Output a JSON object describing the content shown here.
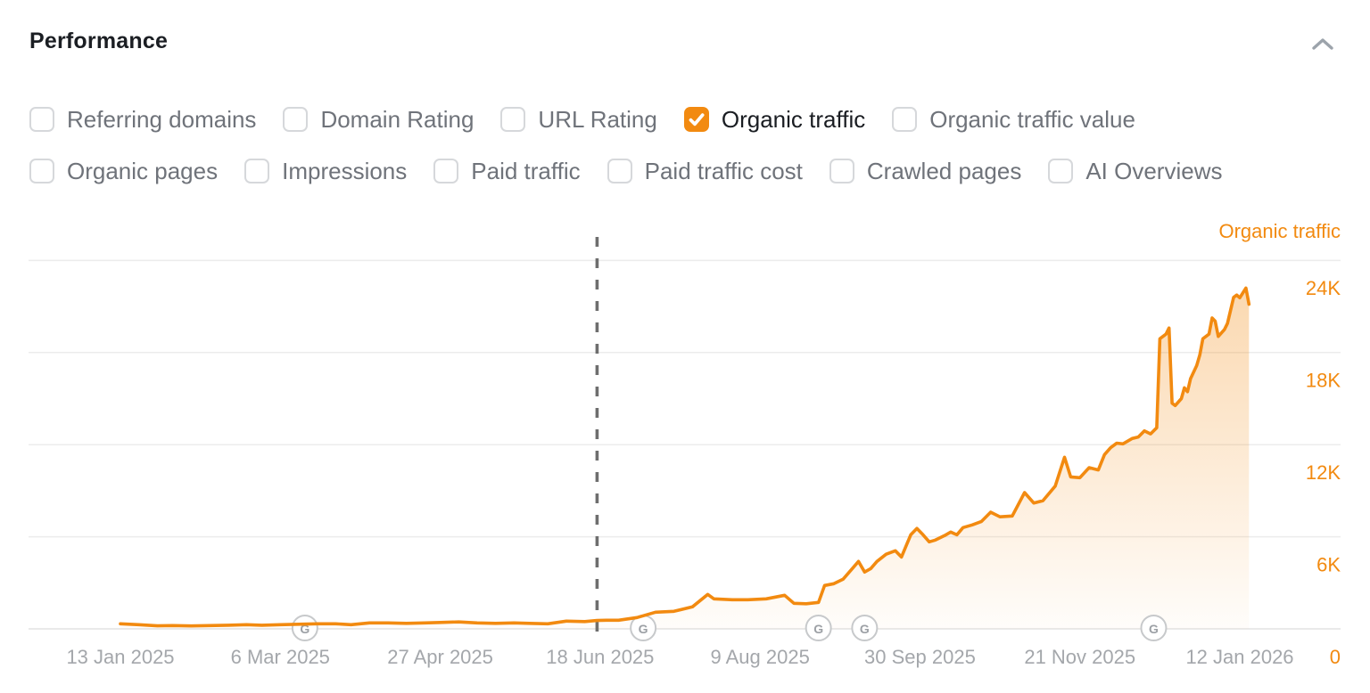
{
  "header": {
    "title": "Performance"
  },
  "filters": {
    "row1": [
      {
        "label": "Referring domains",
        "checked": false
      },
      {
        "label": "Domain Rating",
        "checked": false
      },
      {
        "label": "URL Rating",
        "checked": false
      },
      {
        "label": "Organic traffic",
        "checked": true
      },
      {
        "label": "Organic traffic value",
        "checked": false
      }
    ],
    "row2": [
      {
        "label": "Organic pages",
        "checked": false
      },
      {
        "label": "Impressions",
        "checked": false
      },
      {
        "label": "Paid traffic",
        "checked": false
      },
      {
        "label": "Paid traffic cost",
        "checked": false
      },
      {
        "label": "Crawled pages",
        "checked": false
      },
      {
        "label": "AI Overviews",
        "checked": false
      }
    ]
  },
  "chart_data": {
    "type": "area",
    "title": "Organic traffic",
    "legend_label": "Organic traffic",
    "legend_position": "top-right",
    "grid": true,
    "x_axis": {
      "start_date": "13 Jan 2025",
      "end_date": "12 Jan 2026",
      "tick_labels": [
        "13 Jan 2025",
        "6 Mar 2025",
        "27 Apr 2025",
        "18 Jun 2025",
        "9 Aug 2025",
        "30 Sep 2025",
        "21 Nov 2025",
        "12 Jan 2026"
      ],
      "tick_day_offsets": [
        0,
        52,
        104,
        156,
        208,
        260,
        312,
        364
      ]
    },
    "y_axis": {
      "tick_values": [
        0,
        6000,
        12000,
        18000,
        24000
      ],
      "tick_labels": [
        "0",
        "6K",
        "12K",
        "18K",
        "24K"
      ],
      "ylim": [
        0,
        25500
      ]
    },
    "dashed_marker_day_offset": 155,
    "google_update_icon": "G",
    "google_update_marker_days": [
      60,
      170,
      227,
      242,
      336
    ],
    "day_offsets_relative_to": "13 Jan 2025",
    "points_day_value": [
      [
        0,
        330
      ],
      [
        6,
        270
      ],
      [
        12,
        195
      ],
      [
        17,
        215
      ],
      [
        23,
        190
      ],
      [
        29,
        215
      ],
      [
        35,
        240
      ],
      [
        41,
        270
      ],
      [
        46,
        240
      ],
      [
        52,
        270
      ],
      [
        58,
        300
      ],
      [
        64,
        330
      ],
      [
        70,
        330
      ],
      [
        75,
        270
      ],
      [
        81,
        390
      ],
      [
        87,
        390
      ],
      [
        93,
        360
      ],
      [
        99,
        390
      ],
      [
        104,
        420
      ],
      [
        110,
        450
      ],
      [
        116,
        390
      ],
      [
        122,
        360
      ],
      [
        128,
        390
      ],
      [
        133,
        360
      ],
      [
        139,
        330
      ],
      [
        145,
        505
      ],
      [
        151,
        475
      ],
      [
        155,
        545
      ],
      [
        158,
        560
      ],
      [
        162,
        560
      ],
      [
        168,
        735
      ],
      [
        174,
        1085
      ],
      [
        180,
        1145
      ],
      [
        186,
        1435
      ],
      [
        191,
        2245
      ],
      [
        193,
        1955
      ],
      [
        199,
        1900
      ],
      [
        204,
        1900
      ],
      [
        210,
        1955
      ],
      [
        216,
        2190
      ],
      [
        219,
        1665
      ],
      [
        223,
        1635
      ],
      [
        227,
        1725
      ],
      [
        229,
        2825
      ],
      [
        232,
        2940
      ],
      [
        235,
        3230
      ],
      [
        238,
        3930
      ],
      [
        240,
        4395
      ],
      [
        242,
        3700
      ],
      [
        244,
        3930
      ],
      [
        246,
        4395
      ],
      [
        249,
        4860
      ],
      [
        252,
        5090
      ],
      [
        254,
        4680
      ],
      [
        257,
        6130
      ],
      [
        259,
        6540
      ],
      [
        261,
        6130
      ],
      [
        263,
        5670
      ],
      [
        265,
        5785
      ],
      [
        268,
        6075
      ],
      [
        270,
        6310
      ],
      [
        272,
        6130
      ],
      [
        274,
        6595
      ],
      [
        277,
        6770
      ],
      [
        280,
        7000
      ],
      [
        283,
        7600
      ],
      [
        286,
        7300
      ],
      [
        290,
        7350
      ],
      [
        294,
        8880
      ],
      [
        297,
        8200
      ],
      [
        300,
        8350
      ],
      [
        304,
        9300
      ],
      [
        307,
        11180
      ],
      [
        309,
        9900
      ],
      [
        312,
        9850
      ],
      [
        315,
        10500
      ],
      [
        318,
        10350
      ],
      [
        320,
        11350
      ],
      [
        322,
        11800
      ],
      [
        324,
        12100
      ],
      [
        326,
        12050
      ],
      [
        329,
        12400
      ],
      [
        331,
        12500
      ],
      [
        333,
        12900
      ],
      [
        335,
        12700
      ],
      [
        337,
        13100
      ],
      [
        338,
        18900
      ],
      [
        340,
        19200
      ],
      [
        341,
        19600
      ],
      [
        342,
        14700
      ],
      [
        343,
        14550
      ],
      [
        345,
        15000
      ],
      [
        346,
        15700
      ],
      [
        347,
        15450
      ],
      [
        348,
        16300
      ],
      [
        350,
        17150
      ],
      [
        351,
        17850
      ],
      [
        352,
        18900
      ],
      [
        354,
        19200
      ],
      [
        355,
        20250
      ],
      [
        356,
        20050
      ],
      [
        357,
        19050
      ],
      [
        359,
        19500
      ],
      [
        360,
        19900
      ],
      [
        362,
        21600
      ],
      [
        363,
        21750
      ],
      [
        364,
        21570
      ],
      [
        366,
        22200
      ],
      [
        367,
        21150
      ]
    ]
  },
  "colors": {
    "accent": "#F28A10",
    "grid_line": "#ECECEC",
    "baseline": "#E2E2E2",
    "axis_text": "#A4A7AB",
    "dashed_line": "#6E6E6E",
    "g_ring": "#C7C9CB",
    "g_letter": "#9CA0A5",
    "chevron": "#9CA3AB"
  }
}
